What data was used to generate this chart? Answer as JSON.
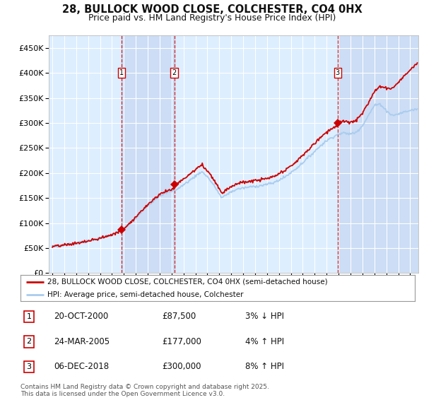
{
  "title_line1": "28, BULLOCK WOOD CLOSE, COLCHESTER, CO4 0HX",
  "title_line2": "Price paid vs. HM Land Registry's House Price Index (HPI)",
  "background_color": "#ffffff",
  "plot_bg_color": "#ddeeff",
  "grid_color": "#ffffff",
  "hpi_line_color": "#aaccee",
  "price_line_color": "#cc0000",
  "vline_color": "#cc0000",
  "vband_color": "#ccddf5",
  "purchases": [
    {
      "date_num": 2000.81,
      "price": 87500,
      "label": "1",
      "date_str": "20-OCT-2000",
      "price_str": "£87,500",
      "pct_str": "3% ↓ HPI"
    },
    {
      "date_num": 2005.23,
      "price": 177000,
      "label": "2",
      "date_str": "24-MAR-2005",
      "price_str": "£177,000",
      "pct_str": "4% ↑ HPI"
    },
    {
      "date_num": 2018.92,
      "price": 300000,
      "label": "3",
      "date_str": "06-DEC-2018",
      "price_str": "£300,000",
      "pct_str": "8% ↑ HPI"
    }
  ],
  "ylim": [
    0,
    475000
  ],
  "xlim_start": 1994.7,
  "xlim_end": 2025.7,
  "yticks": [
    0,
    50000,
    100000,
    150000,
    200000,
    250000,
    300000,
    350000,
    400000,
    450000
  ],
  "ytick_labels": [
    "£0",
    "£50K",
    "£100K",
    "£150K",
    "£200K",
    "£250K",
    "£300K",
    "£350K",
    "£400K",
    "£450K"
  ],
  "legend_entry1": "28, BULLOCK WOOD CLOSE, COLCHESTER, CO4 0HX (semi-detached house)",
  "legend_entry2": "HPI: Average price, semi-detached house, Colchester",
  "footnote_line1": "Contains HM Land Registry data © Crown copyright and database right 2025.",
  "footnote_line2": "This data is licensed under the Open Government Licence v3.0."
}
